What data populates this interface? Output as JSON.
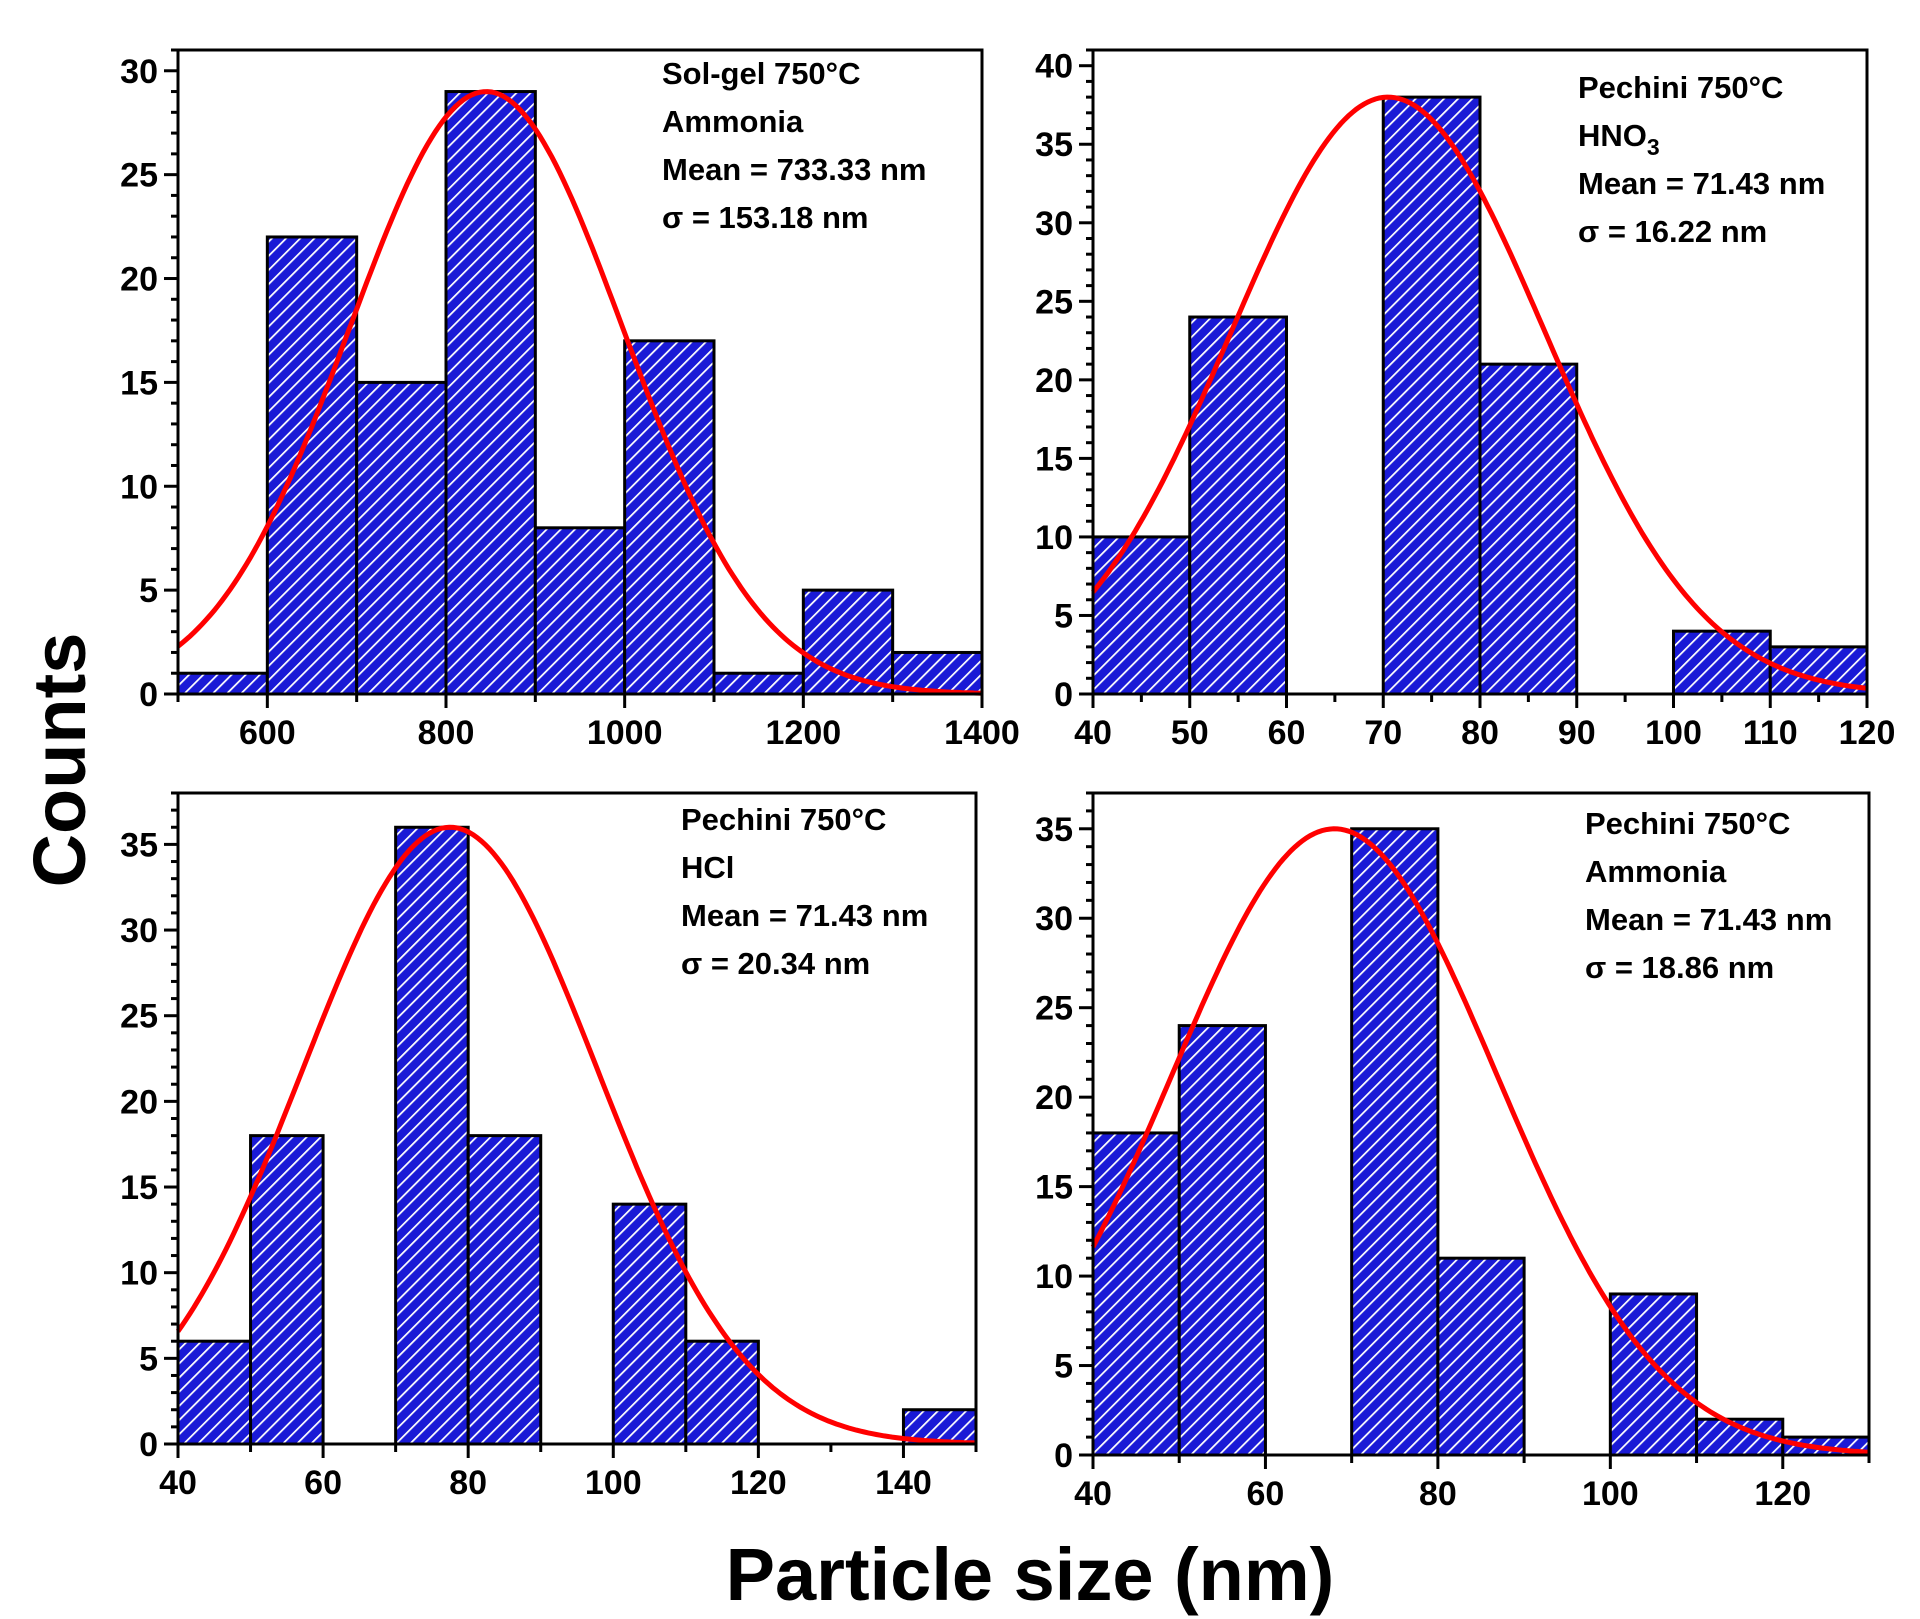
{
  "figure": {
    "xlabel": "Particle size (nm)",
    "ylabel": "Counts"
  },
  "colors": {
    "bar_fill": "#1a1ad6",
    "hatch": "#ffffff",
    "fit_curve": "#ff0000",
    "axis": "#000000"
  },
  "chart_data": [
    {
      "type": "bar",
      "subtype": "histogram-with-gaussian-fit",
      "annotation": [
        "Sol-gel  750°C",
        "Ammonia",
        "Mean = 733.33 nm",
        "σ = 153.18 nm"
      ],
      "xlim": [
        500,
        1400
      ],
      "ylim": [
        0,
        31
      ],
      "xticks": [
        600,
        800,
        1000,
        1200,
        1400
      ],
      "yticks": [
        0,
        5,
        10,
        15,
        20,
        25,
        30
      ],
      "bin_width": 100,
      "bin_starts": [
        500,
        600,
        700,
        800,
        900,
        1000,
        1100,
        1200,
        1300
      ],
      "counts": [
        1,
        22,
        15,
        29,
        8,
        17,
        1,
        5,
        2
      ],
      "fit": {
        "peak_x": 845,
        "amplitude": 29,
        "sigma": 153.18
      }
    },
    {
      "type": "bar",
      "subtype": "histogram-with-gaussian-fit",
      "annotation": [
        "Pechini   750°C",
        "HNO3",
        "Mean = 71.43 nm",
        "σ = 16.22 nm"
      ],
      "xlim": [
        40,
        120
      ],
      "ylim": [
        0,
        41
      ],
      "xticks": [
        40,
        50,
        60,
        70,
        80,
        90,
        100,
        110,
        120
      ],
      "yticks": [
        0,
        5,
        10,
        15,
        20,
        25,
        30,
        35,
        40
      ],
      "bin_width": 10,
      "bin_starts": [
        40,
        50,
        70,
        80,
        100,
        110
      ],
      "counts": [
        10,
        24,
        38,
        21,
        4,
        3
      ],
      "fit": {
        "peak_x": 70.5,
        "amplitude": 38,
        "sigma": 16.22
      }
    },
    {
      "type": "bar",
      "subtype": "histogram-with-gaussian-fit",
      "annotation": [
        "Pechini  750°C",
        "HCl",
        "Mean = 71.43 nm",
        "σ = 20.34 nm"
      ],
      "xlim": [
        40,
        150
      ],
      "ylim": [
        0,
        38
      ],
      "xticks": [
        40,
        60,
        80,
        100,
        120,
        140
      ],
      "yticks": [
        0,
        5,
        10,
        15,
        20,
        25,
        30,
        35
      ],
      "bin_width": 10,
      "bin_starts": [
        40,
        50,
        70,
        80,
        100,
        110,
        140
      ],
      "counts": [
        6,
        18,
        36,
        18,
        14,
        6,
        2
      ],
      "fit": {
        "peak_x": 77.5,
        "amplitude": 36,
        "sigma": 20.34
      }
    },
    {
      "type": "bar",
      "subtype": "histogram-with-gaussian-fit",
      "annotation": [
        "Pechini  750°C",
        "Ammonia",
        "Mean = 71.43 nm",
        "σ = 18.86 nm"
      ],
      "xlim": [
        40,
        130
      ],
      "ylim": [
        0,
        37
      ],
      "xticks": [
        40,
        60,
        80,
        100,
        120
      ],
      "yticks": [
        0,
        5,
        10,
        15,
        20,
        25,
        30,
        35
      ],
      "bin_width": 10,
      "bin_starts": [
        40,
        50,
        70,
        80,
        100,
        110,
        120
      ],
      "counts": [
        18,
        24,
        35,
        11,
        9,
        2,
        1
      ],
      "fit": {
        "peak_x": 68,
        "amplitude": 35,
        "sigma": 18.86
      }
    }
  ]
}
